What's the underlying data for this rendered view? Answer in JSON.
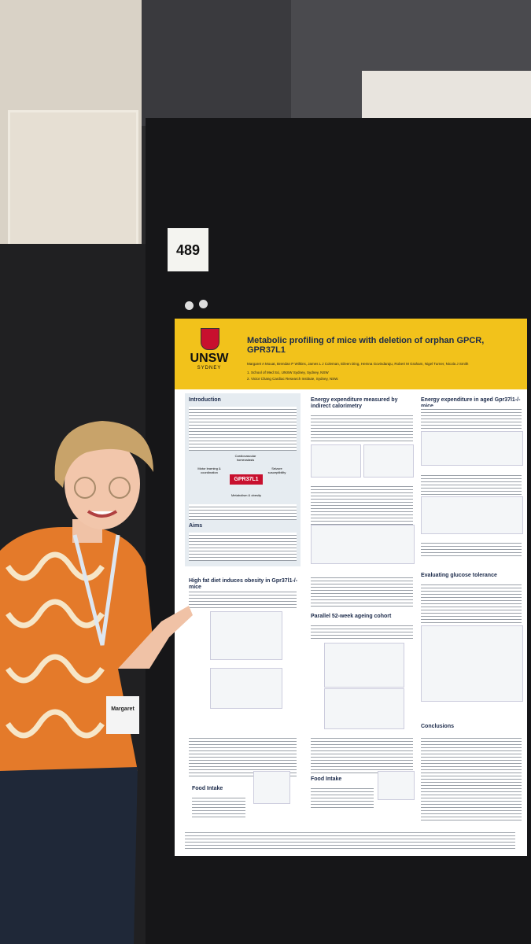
{
  "poster_number": "489",
  "poster": {
    "logo": "UNSW",
    "logo_sub": "SYDNEY",
    "title": "Metabolic profiling of mice with deletion of orphan GPCR, GPR37L1",
    "authors": "Margaret A Mouat, Brendan P Wilkins, James L J Coleman, Eileen Ding, Hemna Govindaraju, Robert M Graham, Nigel Turner, Nicola J Smith",
    "affiliations": [
      "1. School of Med Sci, UNSW Sydney, Sydney, NSW",
      "2. Victor Chang Cardiac Research Institute, Sydney, NSW."
    ],
    "sections": {
      "introduction": "Introduction",
      "diagram_label": "GPR37L1",
      "diagram_nodes": [
        "Cardiovascular homeostasis",
        "Motor learning & coordination",
        "Seizure susceptibility",
        "Metabolism & obesity"
      ],
      "aims": "Aims",
      "high_fat": "High fat diet induces obesity in Gpr37l1-/- mice",
      "food_intake_1": "Food Intake",
      "energy": "Energy expenditure measured by indirect calorimetry",
      "ageing": "Parallel 52-week ageing cohort",
      "food_intake_2": "Food Intake",
      "energy_aged": "Energy expenditure in aged Gpr37l1-/- mice",
      "glucose": "Evaluating glucose tolerance",
      "conclusions": "Conclusions"
    }
  },
  "badge": "Margaret"
}
